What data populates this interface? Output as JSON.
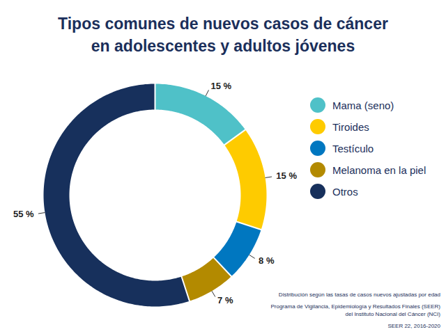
{
  "chart_data": {
    "type": "donut",
    "title": "Tipos comunes de nuevos casos de cáncer\nen adolescentes y adultos jóvenes",
    "categories": [
      "Mama (seno)",
      "Tiroides",
      "Testículo",
      "Melanoma en la piel",
      "Otros"
    ],
    "values": [
      15,
      15,
      8,
      7,
      55
    ],
    "value_labels": [
      "15 %",
      "15 %",
      "8 %",
      "7 %",
      "55 %"
    ],
    "colors": [
      "#4fc1c8",
      "#fecb00",
      "#0077c0",
      "#b38a00",
      "#17305c"
    ],
    "legend": "right",
    "data_labels": true,
    "annotations": [
      "Distribución según las tasas de casos nuevos ajustadas por edad",
      "Programa de Vigilancia, Epidemiología y Resultados Finales (SEER)\ndel Instituto Nacional del Cáncer (NCI)",
      "SEER 22, 2016-2020"
    ]
  }
}
